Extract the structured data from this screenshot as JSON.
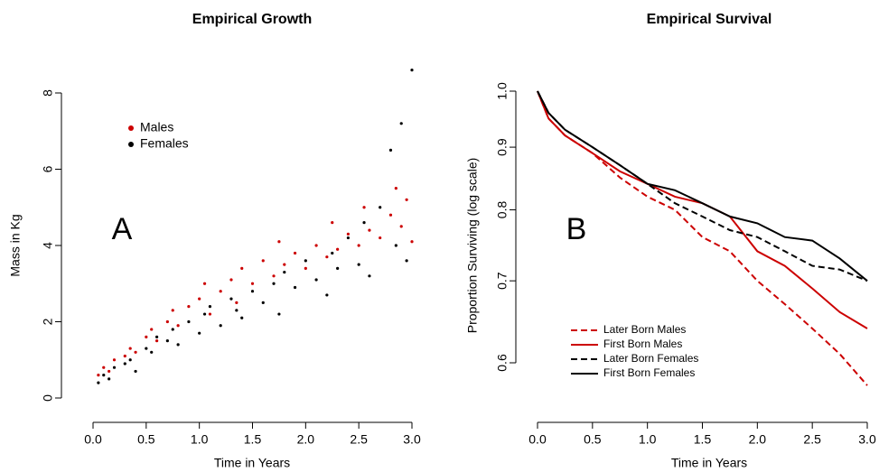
{
  "chart_data": [
    {
      "type": "scatter",
      "title": "Empirical Growth",
      "x_label": "Time in Years",
      "y_label": "Mass in Kg",
      "annotation": "A",
      "xlim": [
        0,
        3
      ],
      "ylim": [
        0,
        8
      ],
      "xticks": [
        {
          "value": 0,
          "label": "0.0"
        },
        0.5,
        {
          "value": 1,
          "label": "1.0"
        },
        1.5,
        {
          "value": 2,
          "label": "2.0"
        },
        2.5,
        {
          "value": 3,
          "label": "3.0"
        }
      ],
      "yticks": [
        0,
        2,
        4,
        6,
        8
      ],
      "series": [
        {
          "name": "Males",
          "color": "#cc0000",
          "x": [
            0.05,
            0.1,
            0.15,
            0.2,
            0.3,
            0.35,
            0.4,
            0.5,
            0.55,
            0.6,
            0.7,
            0.75,
            0.8,
            0.9,
            1.0,
            1.05,
            1.1,
            1.2,
            1.3,
            1.35,
            1.4,
            1.5,
            1.6,
            1.7,
            1.75,
            1.8,
            1.9,
            2.0,
            2.1,
            2.2,
            2.25,
            2.3,
            2.4,
            2.5,
            2.55,
            2.6,
            2.7,
            2.8,
            2.85,
            2.9,
            2.95,
            3.0
          ],
          "values": [
            0.6,
            0.8,
            0.7,
            1.0,
            1.1,
            1.3,
            1.2,
            1.6,
            1.8,
            1.5,
            2.0,
            2.3,
            1.9,
            2.4,
            2.6,
            3.0,
            2.2,
            2.8,
            3.1,
            2.5,
            3.4,
            3.0,
            3.6,
            3.2,
            4.1,
            3.5,
            3.8,
            3.4,
            4.0,
            3.7,
            4.6,
            3.9,
            4.3,
            4.0,
            5.0,
            4.4,
            4.2,
            4.8,
            5.5,
            4.5,
            5.2,
            4.1
          ]
        },
        {
          "name": "Females",
          "color": "#000000",
          "x": [
            0.05,
            0.1,
            0.15,
            0.2,
            0.3,
            0.35,
            0.4,
            0.5,
            0.55,
            0.6,
            0.7,
            0.75,
            0.8,
            0.9,
            1.0,
            1.05,
            1.1,
            1.2,
            1.3,
            1.35,
            1.4,
            1.5,
            1.6,
            1.7,
            1.75,
            1.8,
            1.9,
            2.0,
            2.1,
            2.2,
            2.25,
            2.3,
            2.4,
            2.5,
            2.55,
            2.6,
            2.7,
            2.8,
            2.85,
            2.9,
            2.95,
            3.0
          ],
          "values": [
            0.4,
            0.6,
            0.5,
            0.8,
            0.9,
            1.0,
            0.7,
            1.3,
            1.2,
            1.6,
            1.5,
            1.8,
            1.4,
            2.0,
            1.7,
            2.2,
            2.4,
            1.9,
            2.6,
            2.3,
            2.1,
            2.8,
            2.5,
            3.0,
            2.2,
            3.3,
            2.9,
            3.6,
            3.1,
            2.7,
            3.8,
            3.4,
            4.2,
            3.5,
            4.6,
            3.2,
            5.0,
            6.5,
            4.0,
            7.2,
            3.6,
            8.6
          ]
        }
      ]
    },
    {
      "type": "line",
      "title": "Empirical Survival",
      "x_label": "Time in Years",
      "y_label": "Proportion Surviving (log scale)",
      "annotation": "B",
      "log_y": true,
      "xlim": [
        0,
        3
      ],
      "ylim": [
        0.565,
        1.01
      ],
      "xticks": [
        {
          "value": 0,
          "label": "0.0"
        },
        0.5,
        {
          "value": 1,
          "label": "1.0"
        },
        1.5,
        {
          "value": 2,
          "label": "2.0"
        },
        2.5,
        {
          "value": 3,
          "label": "3.0"
        }
      ],
      "yticks": [
        {
          "value": 1,
          "label": "1.0"
        },
        0.9,
        0.8,
        0.7,
        0.6
      ],
      "x": [
        0,
        0.1,
        0.25,
        0.5,
        0.75,
        1.0,
        1.25,
        1.5,
        1.75,
        2.0,
        2.25,
        2.5,
        2.75,
        3.0
      ],
      "series": [
        {
          "name": "Later Born Males",
          "color": "#cc0000",
          "linestyle": "dashed",
          "values": [
            1.0,
            0.95,
            0.92,
            0.89,
            0.85,
            0.82,
            0.8,
            0.76,
            0.74,
            0.7,
            0.67,
            0.64,
            0.61,
            0.575
          ]
        },
        {
          "name": "First Born Males",
          "color": "#cc0000",
          "linestyle": "solid",
          "values": [
            1.0,
            0.95,
            0.92,
            0.89,
            0.86,
            0.84,
            0.82,
            0.81,
            0.79,
            0.74,
            0.72,
            0.69,
            0.66,
            0.64
          ]
        },
        {
          "name": "Later Born Females",
          "color": "#000000",
          "linestyle": "dashed",
          "values": [
            1.0,
            0.96,
            0.93,
            0.9,
            0.87,
            0.84,
            0.81,
            0.79,
            0.77,
            0.76,
            0.74,
            0.72,
            0.715,
            0.7
          ]
        },
        {
          "name": "First Born Females",
          "color": "#000000",
          "linestyle": "solid",
          "values": [
            1.0,
            0.96,
            0.93,
            0.9,
            0.87,
            0.84,
            0.83,
            0.81,
            0.79,
            0.78,
            0.76,
            0.755,
            0.73,
            0.7
          ]
        }
      ]
    }
  ]
}
